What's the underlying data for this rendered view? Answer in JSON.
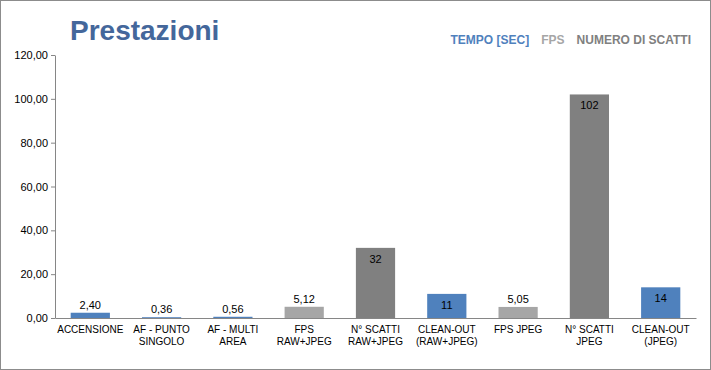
{
  "chart_data": {
    "type": "bar",
    "title": "Prestazioni",
    "categories": [
      "ACCENSIONE",
      "AF - PUNTO SINGOLO",
      "AF - MULTI AREA",
      "FPS RAW+JPEG",
      "N° SCATTI RAW+JPEG",
      "CLEAN-OUT (RAW+JPEG)",
      "FPS JPEG",
      "N° SCATTI JPEG",
      "CLEAN-OUT (JPEG)"
    ],
    "series": [
      {
        "name": "TEMPO [SEC]",
        "color": "#4f81bd",
        "values": [
          2.4,
          0.36,
          0.56,
          null,
          null,
          11,
          null,
          null,
          14
        ],
        "value_labels": [
          "2,40",
          "0,36",
          "0,56",
          null,
          null,
          "11",
          null,
          null,
          "14"
        ]
      },
      {
        "name": "FPS",
        "color": "#a6a6a6",
        "values": [
          null,
          null,
          null,
          5.12,
          null,
          null,
          5.05,
          null,
          null
        ],
        "value_labels": [
          null,
          null,
          null,
          "5,12",
          null,
          null,
          "5,05",
          null,
          null
        ]
      },
      {
        "name": "NUMERO DI SCATTI",
        "color": "#808080",
        "values": [
          null,
          null,
          null,
          null,
          32,
          null,
          null,
          102,
          null
        ],
        "value_labels": [
          null,
          null,
          null,
          null,
          "32",
          null,
          null,
          "102",
          null
        ]
      }
    ],
    "ylim": [
      0,
      120
    ],
    "yticks": [
      {
        "value": 0,
        "label": "0,00"
      },
      {
        "value": 20,
        "label": "20,00"
      },
      {
        "value": 40,
        "label": "40,00"
      },
      {
        "value": 60,
        "label": "60,00"
      },
      {
        "value": 80,
        "label": "80,00"
      },
      {
        "value": 100,
        "label": "100,00"
      },
      {
        "value": 120,
        "label": "120,00"
      }
    ],
    "grid": false,
    "legend": "top-right",
    "data_labels": true
  }
}
